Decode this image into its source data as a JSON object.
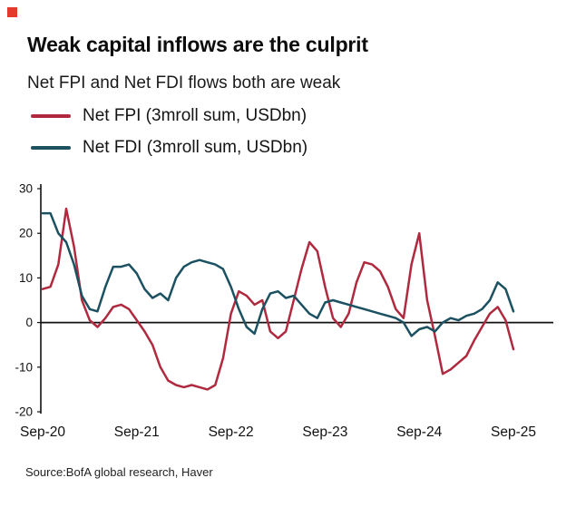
{
  "page": {
    "title": "Weak capital inflows are the culprit",
    "subtitle": "Net FPI and Net FDI flows both are weak",
    "source": "Source:BofA global research, Haver",
    "brand_color": "#e5392e"
  },
  "chart_data": {
    "type": "line",
    "title": "Weak capital inflows are the culprit",
    "subtitle": "Net FPI and Net FDI flows both are weak",
    "xlabel": "",
    "ylabel": "USDbn",
    "x_unit": "month",
    "x_start": "Sep-20",
    "x_end": "Sep-25",
    "xticks": [
      "Sep-20",
      "Sep-21",
      "Sep-22",
      "Sep-23",
      "Sep-24",
      "Sep-25"
    ],
    "xtick_indices": [
      0,
      12,
      24,
      36,
      48,
      60
    ],
    "yticks": [
      30,
      20,
      10,
      0,
      -10,
      -20
    ],
    "ylim": [
      -20,
      30
    ],
    "grid": false,
    "zero_line": true,
    "legend_position": "top-left",
    "series": [
      {
        "name": "Net FPI (3mroll sum, USDbn)",
        "color": "#b02a3f",
        "values": [
          7.5,
          8,
          13,
          25.5,
          17,
          5,
          0.5,
          -1,
          1,
          3.5,
          4,
          3,
          0.5,
          -2,
          -5,
          -10,
          -13,
          -14,
          -14.5,
          -14,
          -14.5,
          -15,
          -14,
          -8,
          2,
          7,
          6,
          4,
          5,
          -2,
          -3.5,
          -2,
          5,
          12,
          18,
          16,
          8,
          1,
          -1,
          2,
          9,
          13.5,
          13,
          11.5,
          8,
          3,
          1,
          13,
          20,
          5,
          -3,
          -11.5,
          -10.5,
          -9,
          -7.5,
          -4,
          -1,
          2,
          3.5,
          0.5,
          -6
        ]
      },
      {
        "name": "Net FDI (3mroll sum, USDbn)",
        "color": "#1b5161",
        "values": [
          24.5,
          24.5,
          20,
          18,
          13,
          6,
          3,
          2.5,
          8,
          12.5,
          12.5,
          13,
          11,
          7.5,
          5.5,
          6.5,
          5,
          10,
          12.5,
          13.5,
          14,
          13.5,
          13,
          12,
          8,
          3,
          -1,
          -2.5,
          3,
          6.5,
          7,
          5.5,
          6,
          4,
          2,
          1,
          4.5,
          5,
          4.5,
          4,
          3.5,
          3,
          2.5,
          2,
          1.5,
          1,
          0,
          -3,
          -1.5,
          -1,
          -2,
          0,
          1,
          0.5,
          1.5,
          2,
          3,
          5,
          9,
          7.5,
          2.5
        ]
      }
    ]
  }
}
